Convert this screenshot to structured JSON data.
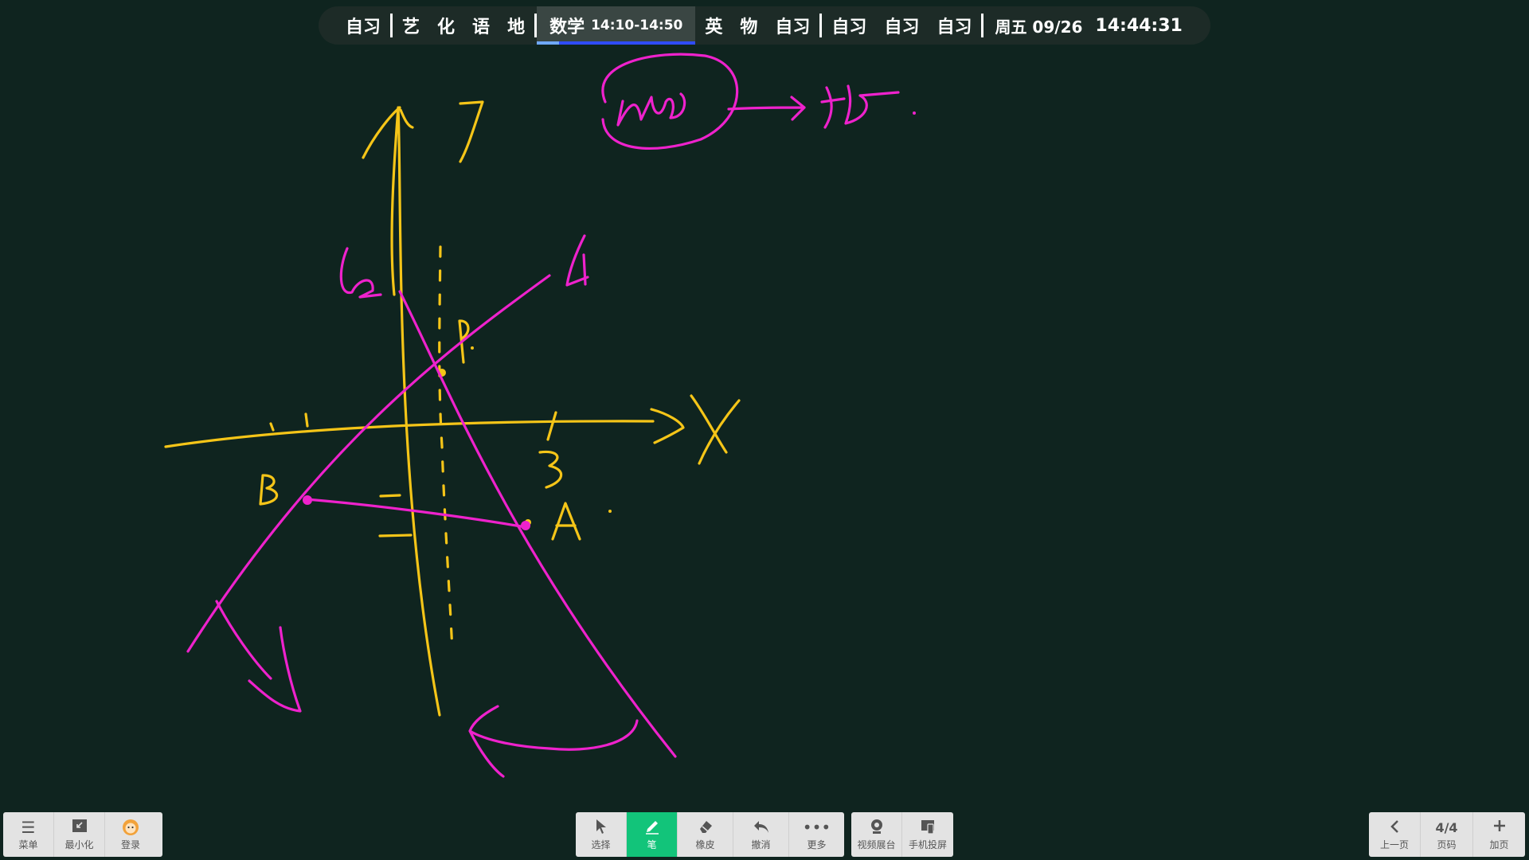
{
  "schedule": {
    "group1": [
      "自习"
    ],
    "group2": [
      "艺",
      "化",
      "语",
      "地"
    ],
    "current": {
      "subject": "数学",
      "time": "14:10-14:50",
      "progress": 0.14
    },
    "group3": [
      "英",
      "物",
      "自习"
    ],
    "group4": [
      "自习",
      "自习",
      "自习"
    ],
    "date": "周五 09/26",
    "clock": "14:44:31"
  },
  "board": {
    "background": "#0f241f",
    "ink_colors": {
      "yellow": "#f5c518",
      "magenta": "#ee22cc"
    }
  },
  "left_toolbar": [
    {
      "icon": "menu-icon",
      "label": "菜单"
    },
    {
      "icon": "minimize-icon",
      "label": "最小化"
    },
    {
      "icon": "avatar-icon",
      "label": "登录"
    }
  ],
  "center_toolbar": [
    {
      "icon": "cursor-icon",
      "label": "选择"
    },
    {
      "icon": "pen-icon",
      "label": "笔",
      "active": true
    },
    {
      "icon": "eraser-icon",
      "label": "橡皮"
    },
    {
      "icon": "undo-icon",
      "label": "撤消"
    },
    {
      "icon": "more-icon",
      "label": "更多"
    }
  ],
  "share_toolbar": [
    {
      "icon": "camera-icon",
      "label": "视频展台"
    },
    {
      "icon": "phone-cast-icon",
      "label": "手机投屏"
    }
  ],
  "page_toolbar": {
    "prev_label": "上一页",
    "page": "4/4",
    "page_label": "页码",
    "add_label": "加页"
  }
}
